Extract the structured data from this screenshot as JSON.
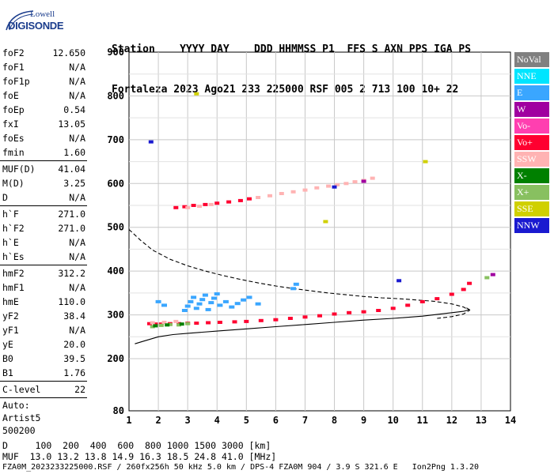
{
  "logo": {
    "line1": "Lowell",
    "line2": "DIGISONDE"
  },
  "header": {
    "labels": {
      "station": "Station",
      "yyyy": "YYYY",
      "day": "DAY",
      "ddd": "DDD",
      "hhmmss": "HHMMSS",
      "p1": "P1",
      "ffs": "FFS",
      "s": "S",
      "axn": "AXN",
      "pps": "PPS",
      "iga": "IGA",
      "ps": "PS"
    },
    "values": {
      "station": "Fortaleza",
      "yyyy": "2023",
      "day": "Ago21",
      "ddd": "233",
      "hhmmss": "225000",
      "p1": "RSF",
      "ffs": "005",
      "s": "2",
      "axn": "713",
      "pps": "100",
      "iga": "10+",
      "ps": "22"
    }
  },
  "params": {
    "group1": [
      {
        "k": "foF2",
        "v": "12.650"
      },
      {
        "k": "foF1",
        "v": "N/A"
      },
      {
        "k": "foF1p",
        "v": "N/A"
      },
      {
        "k": "foE",
        "v": "N/A"
      },
      {
        "k": "foEp",
        "v": "0.54"
      },
      {
        "k": "fxI",
        "v": "13.05"
      },
      {
        "k": "foEs",
        "v": "N/A"
      },
      {
        "k": "fmin",
        "v": "1.60"
      }
    ],
    "group2": [
      {
        "k": "MUF(D)",
        "v": "41.04"
      },
      {
        "k": "M(D)",
        "v": "3.25"
      },
      {
        "k": "D",
        "v": "N/A"
      }
    ],
    "group3": [
      {
        "k": "h`F",
        "v": "271.0"
      },
      {
        "k": "h`F2",
        "v": "271.0"
      },
      {
        "k": "h`E",
        "v": "N/A"
      },
      {
        "k": "h`Es",
        "v": "N/A"
      }
    ],
    "group4": [
      {
        "k": "hmF2",
        "v": "312.2"
      },
      {
        "k": "hmF1",
        "v": "N/A"
      },
      {
        "k": "hmE",
        "v": "110.0"
      },
      {
        "k": "yF2",
        "v": "38.4"
      },
      {
        "k": "yF1",
        "v": "N/A"
      },
      {
        "k": "yE",
        "v": "20.0"
      },
      {
        "k": "B0",
        "v": "39.5"
      },
      {
        "k": "B1",
        "v": "1.76"
      }
    ],
    "group5": [
      {
        "k": "C-level",
        "v": "22"
      }
    ],
    "auto": [
      "Auto:",
      "Artist5",
      "500200"
    ]
  },
  "bottom": {
    "line1": "D     100  200  400  600  800 1000 1500 3000 [km]",
    "line2": "MUF  13.0 13.2 13.8 14.9 16.3 18.5 24.8 41.0 [MHz]",
    "footer": "FZA0M_2023233225000.RSF / 260fx256h 50 kHz 5.0 km / DPS-4 FZA0M 904 / 3.9 S 321.6 E   Ion2Png 1.3.20"
  },
  "legend": [
    {
      "label": "NoVal",
      "color": "#808080"
    },
    {
      "label": "NNE",
      "color": "#00e5ff"
    },
    {
      "label": "E",
      "color": "#3aa6ff"
    },
    {
      "label": "W",
      "color": "#a000a0"
    },
    {
      "label": "Vo-",
      "color": "#ff3fb0"
    },
    {
      "label": "Vo+",
      "color": "#ff0030"
    },
    {
      "label": "SSW",
      "color": "#ffb3b3"
    },
    {
      "label": "X-",
      "color": "#008000"
    },
    {
      "label": "X+",
      "color": "#88c060"
    },
    {
      "label": "SSE",
      "color": "#d0d000"
    },
    {
      "label": "NNW",
      "color": "#1a1ad0"
    }
  ],
  "chart_data": {
    "type": "scatter",
    "xlim": [
      1,
      14
    ],
    "ylim": [
      80,
      900
    ],
    "x_ticks": [
      "1",
      "2",
      "3",
      "4",
      "5",
      "6",
      "7",
      "8",
      "9",
      "10",
      "11",
      "12",
      "13",
      "14"
    ],
    "y_ticks": [
      "80",
      "200",
      "300",
      "400",
      "500",
      "600",
      "700",
      "800",
      "900"
    ],
    "grid": true,
    "legend_placement": "right",
    "series": [
      {
        "name": "Vo+",
        "color": "#ff0030",
        "x": [
          1.7,
          1.9,
          2.1,
          2.4,
          2.7,
          3.0,
          3.3,
          3.7,
          4.1,
          4.6,
          5.0,
          5.5,
          6.0,
          6.5,
          7.0,
          7.5,
          8.0,
          8.5,
          9.0,
          9.5,
          10.0,
          10.5,
          11.0,
          11.5,
          12.0,
          12.4,
          12.6
        ],
        "y": [
          280,
          279,
          279,
          280,
          280,
          281,
          281,
          282,
          283,
          284,
          285,
          287,
          289,
          292,
          295,
          298,
          302,
          305,
          307,
          310,
          315,
          322,
          330,
          337,
          347,
          358,
          372
        ]
      },
      {
        "name": "Vo+",
        "color": "#ff0030",
        "x": [
          2.6,
          2.9,
          3.2,
          3.6,
          4.0,
          4.4,
          4.8,
          5.1
        ],
        "y": [
          545,
          547,
          550,
          552,
          555,
          558,
          561,
          565
        ]
      },
      {
        "name": "SSW",
        "color": "#ffb3b3",
        "x": [
          1.8,
          2.2,
          2.6,
          3.0,
          3.4,
          3.8,
          5.4,
          5.8,
          6.2,
          6.6,
          7.0,
          7.4,
          7.8,
          8.1,
          8.4,
          8.7,
          9.0,
          9.3
        ],
        "y": [
          282,
          283,
          285,
          545,
          548,
          552,
          568,
          572,
          577,
          581,
          585,
          590,
          594,
          597,
          600,
          604,
          607,
          612
        ]
      },
      {
        "name": "E",
        "color": "#3aa6ff",
        "x": [
          2.9,
          3.0,
          3.1,
          3.2,
          3.3,
          3.4,
          3.5,
          3.6,
          3.7,
          3.8,
          3.9,
          4.0,
          4.1,
          4.3,
          4.5,
          4.7,
          4.9,
          5.1,
          5.4,
          2.2,
          2.0,
          6.6,
          6.7
        ],
        "y": [
          310,
          320,
          330,
          340,
          315,
          325,
          335,
          345,
          312,
          328,
          338,
          348,
          322,
          330,
          318,
          326,
          334,
          340,
          325,
          322,
          330,
          360,
          370
        ]
      },
      {
        "name": "X+",
        "color": "#88c060",
        "x": [
          1.8,
          2.1,
          2.4,
          2.7,
          3.0,
          13.2
        ],
        "y": [
          273,
          276,
          278,
          277,
          280,
          385
        ]
      },
      {
        "name": "X-",
        "color": "#008000",
        "x": [
          1.9,
          2.3,
          2.8
        ],
        "y": [
          275,
          277,
          279
        ]
      },
      {
        "name": "NNW",
        "color": "#1a1ad0",
        "x": [
          1.75,
          8.0,
          10.2
        ],
        "y": [
          695,
          592,
          378
        ]
      },
      {
        "name": "SSE",
        "color": "#d0d000",
        "x": [
          3.3,
          7.7,
          11.1
        ],
        "y": [
          805,
          513,
          650
        ]
      },
      {
        "name": "W",
        "color": "#a000a0",
        "x": [
          13.4,
          9.0
        ],
        "y": [
          392,
          605
        ]
      }
    ],
    "curves": [
      {
        "style": "dashed",
        "x": [
          1.0,
          1.4,
          1.8,
          2.4,
          3.0,
          3.6,
          4.2,
          4.8,
          5.4,
          6.0,
          6.6,
          7.2,
          7.8,
          8.4,
          9.0,
          9.6,
          10.2,
          10.8,
          11.4,
          12.0,
          12.4,
          12.6,
          12.4,
          12.0,
          11.5
        ],
        "y": [
          495,
          470,
          448,
          427,
          412,
          400,
          390,
          381,
          373,
          366,
          360,
          355,
          350,
          346,
          342,
          339,
          337,
          334,
          331,
          325,
          318,
          310,
          302,
          296,
          292
        ]
      },
      {
        "style": "solid",
        "x": [
          1.2,
          1.5,
          2.0,
          2.5,
          3.0,
          4.0,
          5.0,
          6.0,
          7.0,
          8.0,
          9.0,
          10.0,
          11.0,
          12.0,
          12.4,
          12.6,
          12.5
        ],
        "y": [
          234,
          240,
          250,
          255,
          258,
          263,
          268,
          273,
          278,
          283,
          288,
          292,
          297,
          305,
          308,
          312,
          316
        ]
      }
    ]
  }
}
